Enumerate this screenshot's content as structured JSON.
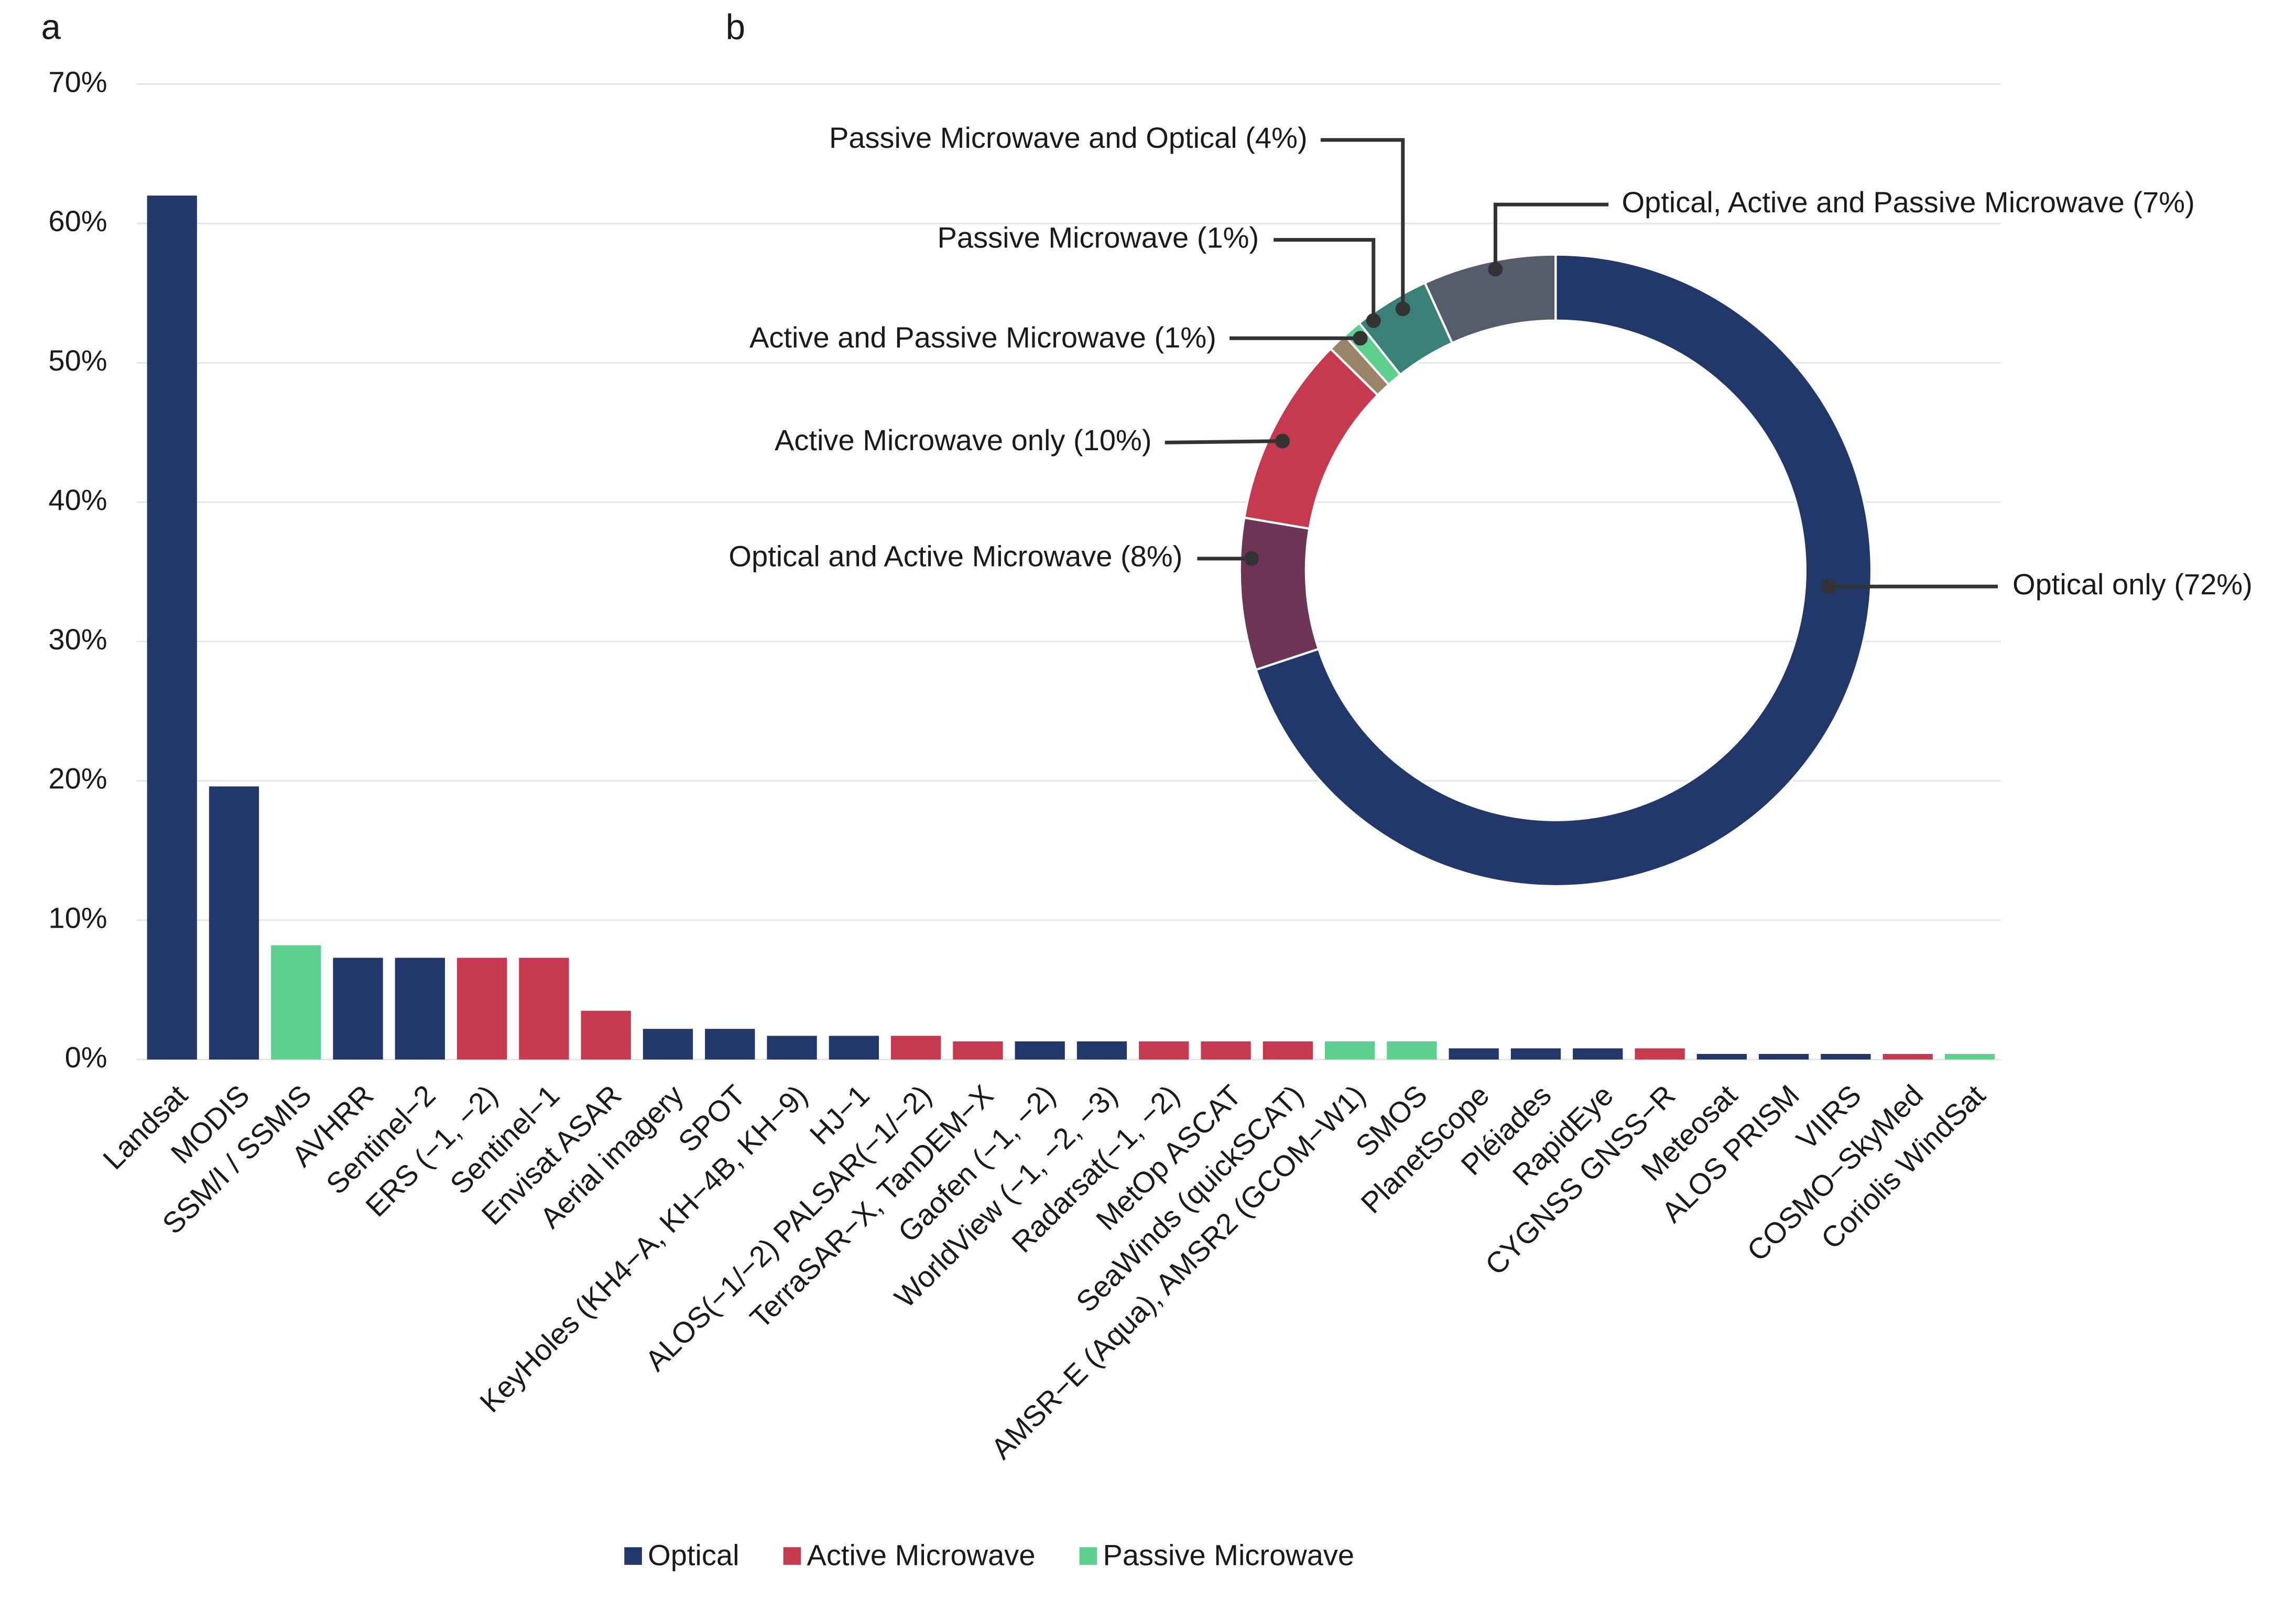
{
  "chart_data": [
    {
      "type": "bar",
      "panel": "a",
      "categories": [
        "Landsat",
        "MODIS",
        "SSM/I / SSMIS",
        "AVHRR",
        "Sentinel−2",
        "ERS (−1, −2)",
        "Sentinel−1",
        "Envisat ASAR",
        "Aerial imagery",
        "SPOT",
        "KeyHoles (KH4−A, KH−4B, KH−9)",
        "HJ−1",
        "ALOS(−1/−2) PALSAR(−1/−2)",
        "TerraSAR−X, TanDEM−X",
        "Gaofen (−1, −2)",
        "WorldView (−1, −2, −3)",
        "Radarsat(−1, −2)",
        "MetOp ASCAT",
        "SeaWinds (quickSCAT)",
        "AMSR−E (Aqua), AMSR2 (GCOM−W1)",
        "SMOS",
        "PlanetScope",
        "Pléiades",
        "RapidEye",
        "CYGNSS GNSS−R",
        "Meteosat",
        "ALOS PRISM",
        "VIIRS",
        "COSMO−SkyMed",
        "Coriolis WindSat"
      ],
      "series": [
        {
          "name": "Optical",
          "color": "#22376a",
          "values": [
            62,
            19.6,
            null,
            7.3,
            7.3,
            null,
            null,
            null,
            2.2,
            2.2,
            1.7,
            1.7,
            null,
            null,
            1.3,
            1.3,
            null,
            null,
            null,
            null,
            null,
            0.8,
            0.8,
            0.8,
            null,
            0.4,
            0.4,
            0.4,
            null,
            null
          ]
        },
        {
          "name": "Active Microwave",
          "color": "#c6394f",
          "values": [
            null,
            null,
            null,
            null,
            null,
            7.3,
            7.3,
            3.5,
            null,
            null,
            null,
            null,
            1.7,
            1.3,
            null,
            null,
            1.3,
            1.3,
            1.3,
            null,
            null,
            null,
            null,
            null,
            0.8,
            null,
            null,
            null,
            0.4,
            null
          ]
        },
        {
          "name": "Passive Microwave",
          "color": "#5dd08f",
          "values": [
            null,
            null,
            8.2,
            null,
            null,
            null,
            null,
            null,
            null,
            null,
            null,
            null,
            null,
            null,
            null,
            null,
            null,
            null,
            null,
            1.3,
            1.3,
            null,
            null,
            null,
            null,
            null,
            null,
            null,
            null,
            0.4
          ]
        }
      ],
      "ylim": [
        0,
        70
      ],
      "yticks": [
        {
          "value": 0,
          "label": "0%"
        },
        {
          "value": 10,
          "label": "10%"
        },
        {
          "value": 20,
          "label": "20%"
        },
        {
          "value": 30,
          "label": "30%"
        },
        {
          "value": 40,
          "label": "40%"
        },
        {
          "value": 50,
          "label": "50%"
        },
        {
          "value": 60,
          "label": "60%"
        },
        {
          "value": 70,
          "label": "70%"
        }
      ],
      "grid": true
    },
    {
      "type": "donut",
      "panel": "b",
      "labels": [
        "Optical only (72%)",
        "Optical and Active Microwave (8%)",
        "Active Microwave only (10%)",
        "Active and Passive Microwave (1%)",
        "Passive Microwave (1%)",
        "Passive Microwave and Optical (4%)",
        "Optical, Active and Passive Microwave (7%)"
      ],
      "values": [
        72,
        8,
        10,
        1,
        1,
        4,
        7
      ],
      "colors": [
        "#22376a",
        "#6e3557",
        "#c6394f",
        "#9a8468",
        "#5dd08f",
        "#3a8178",
        "#555d6d"
      ]
    }
  ]
}
